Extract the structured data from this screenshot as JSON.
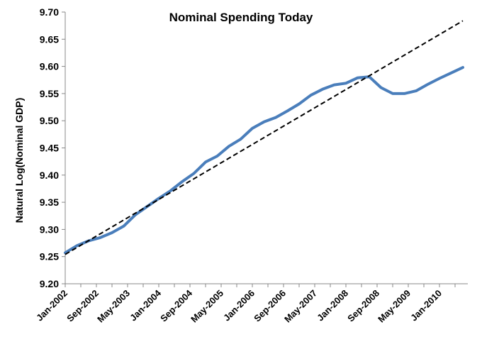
{
  "chart_data": {
    "type": "line",
    "title": "Nominal Spending Today",
    "xlabel": "",
    "ylabel": "Natural Log(Nominal GDP)",
    "ylim": [
      9.2,
      9.7
    ],
    "yticks": [
      "9.20",
      "9.25",
      "9.30",
      "9.35",
      "9.40",
      "9.45",
      "9.50",
      "9.55",
      "9.60",
      "9.65",
      "9.70"
    ],
    "x_tick_labels": [
      "Jan-2002",
      "Sep-2002",
      "May-2003",
      "Jan-2004",
      "Sep-2004",
      "May-2005",
      "Jan-2006",
      "Sep-2006",
      "May-2007",
      "Jan-2008",
      "Sep-2008",
      "May-2009",
      "Jan-2010"
    ],
    "grid": false,
    "legend": "none",
    "series": [
      {
        "style": "solid",
        "color": "#4a7ebb",
        "x": [
          "Jan-2002",
          "Apr-2002",
          "Jul-2002",
          "Oct-2002",
          "Jan-2003",
          "Apr-2003",
          "Jul-2003",
          "Oct-2003",
          "Jan-2004",
          "Apr-2004",
          "Jul-2004",
          "Oct-2004",
          "Jan-2005",
          "Apr-2005",
          "Jul-2005",
          "Oct-2005",
          "Jan-2006",
          "Apr-2006",
          "Jul-2006",
          "Oct-2006",
          "Jan-2007",
          "Apr-2007",
          "Jul-2007",
          "Oct-2007",
          "Jan-2008",
          "Apr-2008",
          "Jul-2008",
          "Oct-2008",
          "Jan-2009",
          "Apr-2009",
          "Jul-2009",
          "Oct-2009",
          "Jan-2010",
          "Apr-2010",
          "Jul-2010"
        ],
        "values": [
          9.257,
          9.27,
          9.279,
          9.285,
          9.294,
          9.306,
          9.327,
          9.342,
          9.357,
          9.371,
          9.388,
          9.403,
          9.424,
          9.435,
          9.453,
          9.466,
          9.486,
          9.498,
          9.506,
          9.518,
          9.531,
          9.547,
          9.558,
          9.566,
          9.569,
          9.579,
          9.581,
          9.561,
          9.55,
          9.55,
          9.555,
          9.567,
          9.578,
          9.588,
          9.598
        ]
      },
      {
        "style": "dashed",
        "color": "#000000",
        "x": [
          "Jan-2002",
          "Jul-2010"
        ],
        "values": [
          9.254,
          9.684
        ]
      }
    ]
  }
}
